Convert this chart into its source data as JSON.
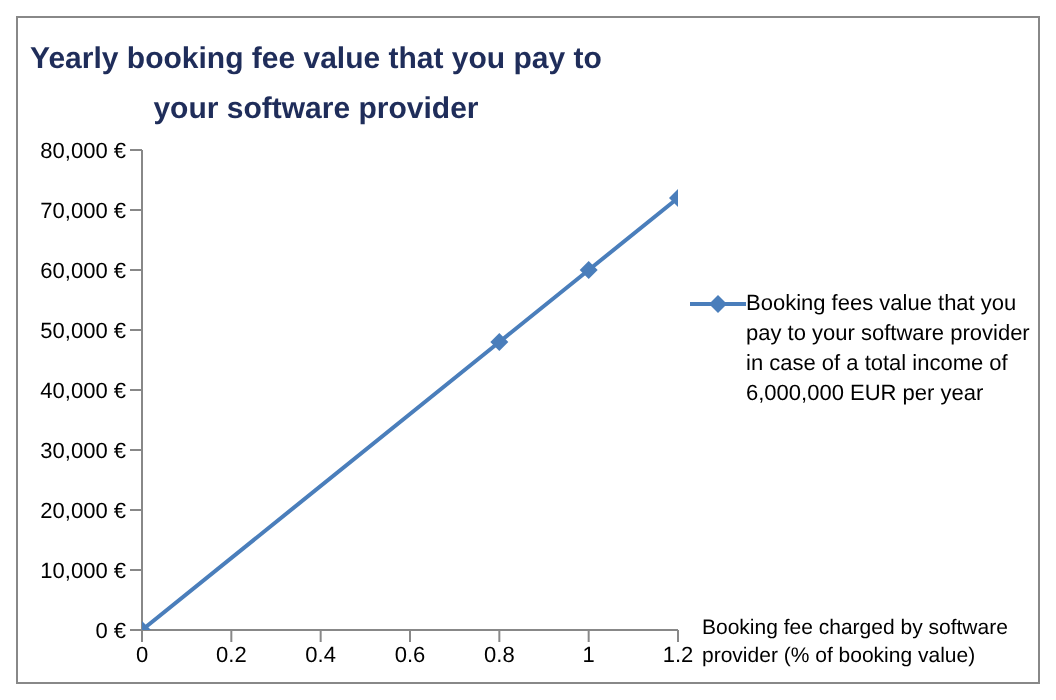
{
  "chart_data": {
    "type": "line",
    "title": "Yearly booking  fee value that you pay to your software provider",
    "xlabel": "Booking fee charged by software provider (% of booking value)",
    "x": [
      0,
      0.8,
      1,
      1.2
    ],
    "series": [
      {
        "name": "Booking fees value that you pay to your  software provider in case of a total income of 6,000,000 EUR per year",
        "color": "#4a7ebb",
        "values": [
          0,
          48000,
          60000,
          72000
        ]
      }
    ],
    "xlim": [
      0,
      1.2
    ],
    "xticks": [
      0,
      0.2,
      0.4,
      0.6,
      0.8,
      1,
      1.2
    ],
    "ylim": [
      0,
      80000
    ],
    "yticks": [
      {
        "value": 0,
        "label": "0 €"
      },
      {
        "value": 10000,
        "label": "10,000 €"
      },
      {
        "value": 20000,
        "label": "20,000 €"
      },
      {
        "value": 30000,
        "label": "30,000 €"
      },
      {
        "value": 40000,
        "label": "40,000 €"
      },
      {
        "value": 50000,
        "label": "50,000 €"
      },
      {
        "value": 60000,
        "label": "60,000 €"
      },
      {
        "value": 70000,
        "label": "70,000 €"
      },
      {
        "value": 80000,
        "label": "80,000 €"
      }
    ],
    "grid": false,
    "legend": "right",
    "marker": "diamond",
    "line_style": "solid"
  }
}
